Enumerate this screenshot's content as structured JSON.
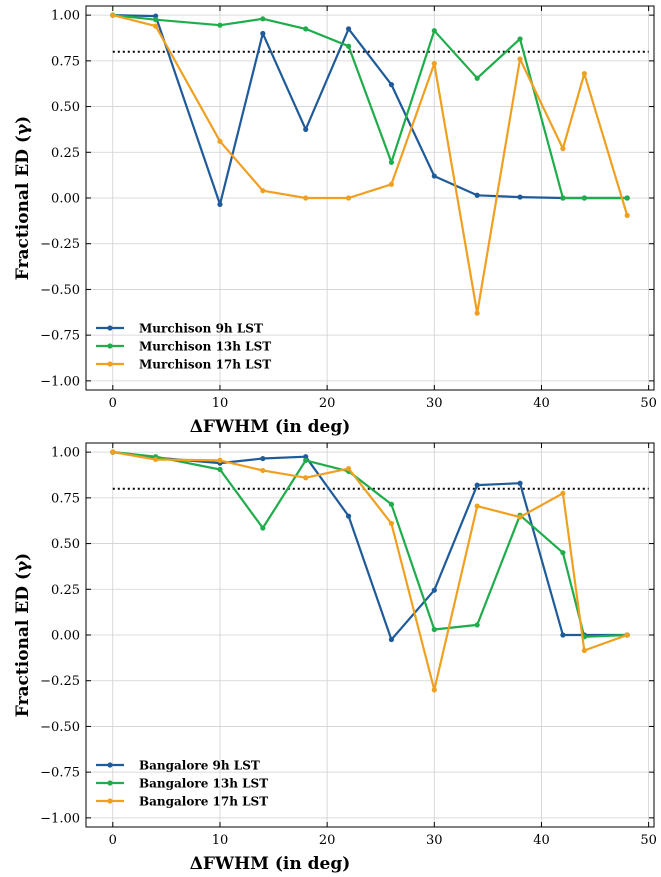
{
  "chart_data": [
    {
      "type": "line",
      "xlabel": "ΔFWHM (in deg)",
      "ylabel": "Fractional ED (γ)",
      "xlim": [
        -2.5,
        50.5
      ],
      "ylim": [
        -1.05,
        1.05
      ],
      "xticks": [
        0,
        10,
        20,
        30,
        40,
        50
      ],
      "yticks": [
        1.0,
        0.75,
        0.5,
        0.25,
        0.0,
        -0.25,
        -0.5,
        -0.75,
        -1.0
      ],
      "xtick_labels": [
        "0",
        "10",
        "20",
        "30",
        "40",
        "50"
      ],
      "ytick_labels": [
        "1.00",
        "0.75",
        "0.50",
        "0.25",
        "0.00",
        "−0.25",
        "−0.50",
        "−0.75",
        "−1.00"
      ],
      "grid": true,
      "legend_position": "lower-left",
      "reference_line": {
        "y": 0.8,
        "x_range": [
          0,
          50
        ],
        "style": "dotted",
        "color": "#000000"
      },
      "series": [
        {
          "name": "Murchison 9h LST",
          "color": "#1f5b99",
          "x": [
            0,
            4,
            10,
            14,
            18,
            22,
            26,
            30,
            34,
            38,
            42,
            44,
            48
          ],
          "y": [
            1.0,
            0.995,
            -0.035,
            0.9,
            0.375,
            0.925,
            0.62,
            0.12,
            0.015,
            0.005,
            0.0,
            0.0,
            0.0
          ]
        },
        {
          "name": "Murchison 13h LST",
          "color": "#1fad4b",
          "x": [
            0,
            4,
            10,
            14,
            18,
            22,
            26,
            30,
            34,
            38,
            42,
            44,
            48
          ],
          "y": [
            1.0,
            0.975,
            0.945,
            0.98,
            0.925,
            0.83,
            0.195,
            0.915,
            0.655,
            0.87,
            0.0,
            0.0,
            0.0
          ]
        },
        {
          "name": "Murchison 17h LST",
          "color": "#f0a020",
          "x": [
            0,
            4,
            10,
            14,
            18,
            22,
            26,
            30,
            34,
            38,
            42,
            44,
            48
          ],
          "y": [
            1.0,
            0.94,
            0.31,
            0.04,
            0.0,
            0.0,
            0.075,
            0.735,
            -0.63,
            0.76,
            0.27,
            0.68,
            -0.095
          ]
        }
      ]
    },
    {
      "type": "line",
      "xlabel": "ΔFWHM (in deg)",
      "ylabel": "Fractional ED (γ)",
      "xlim": [
        -2.5,
        50.5
      ],
      "ylim": [
        -1.05,
        1.05
      ],
      "xticks": [
        0,
        10,
        20,
        30,
        40,
        50
      ],
      "yticks": [
        1.0,
        0.75,
        0.5,
        0.25,
        0.0,
        -0.25,
        -0.5,
        -0.75,
        -1.0
      ],
      "xtick_labels": [
        "0",
        "10",
        "20",
        "30",
        "40",
        "50"
      ],
      "ytick_labels": [
        "1.00",
        "0.75",
        "0.50",
        "0.25",
        "0.00",
        "−0.25",
        "−0.50",
        "−0.75",
        "−1.00"
      ],
      "grid": true,
      "legend_position": "lower-left",
      "reference_line": {
        "y": 0.8,
        "x_range": [
          0,
          50
        ],
        "style": "dotted",
        "color": "#000000"
      },
      "series": [
        {
          "name": "Bangalore 9h LST",
          "color": "#1f5b99",
          "x": [
            0,
            4,
            10,
            14,
            18,
            22,
            26,
            30,
            34,
            38,
            42,
            44,
            48
          ],
          "y": [
            1.0,
            0.97,
            0.94,
            0.965,
            0.975,
            0.65,
            -0.025,
            0.245,
            0.82,
            0.83,
            0.0,
            0.0,
            0.0
          ]
        },
        {
          "name": "Bangalore 13h LST",
          "color": "#1fad4b",
          "x": [
            0,
            4,
            10,
            14,
            18,
            22,
            26,
            30,
            34,
            38,
            42,
            44,
            48
          ],
          "y": [
            1.0,
            0.975,
            0.905,
            0.585,
            0.955,
            0.895,
            0.715,
            0.03,
            0.055,
            0.655,
            0.45,
            -0.01,
            0.0
          ]
        },
        {
          "name": "Bangalore 17h LST",
          "color": "#f0a020",
          "x": [
            0,
            4,
            10,
            14,
            18,
            22,
            26,
            30,
            34,
            38,
            42,
            44,
            48
          ],
          "y": [
            1.0,
            0.96,
            0.955,
            0.9,
            0.86,
            0.91,
            0.61,
            -0.3,
            0.705,
            0.645,
            0.775,
            -0.085,
            0.0
          ]
        }
      ]
    }
  ]
}
